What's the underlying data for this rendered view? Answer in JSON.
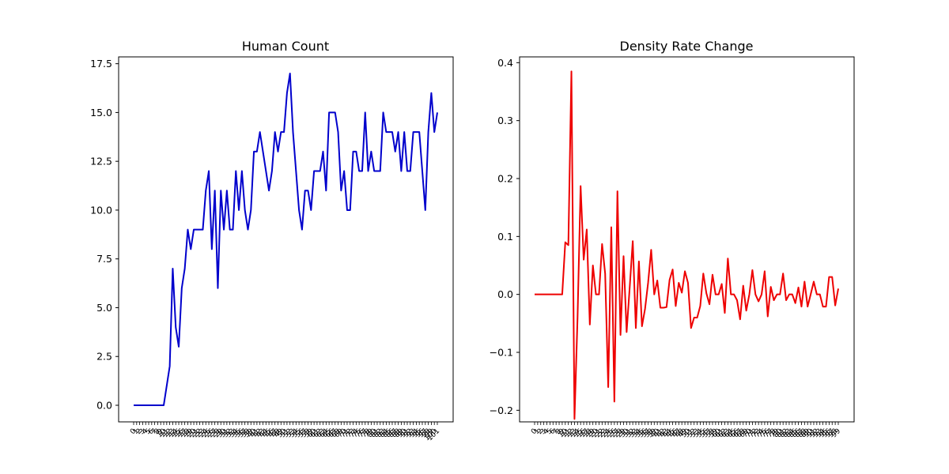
{
  "chart_data": [
    {
      "type": "line",
      "title": "Human Count",
      "xlabel": "",
      "ylabel": "",
      "color": "#0000cc",
      "ylim": [
        -0.85,
        17.85
      ],
      "yticks": [
        "0.0",
        "2.5",
        "5.0",
        "7.5",
        "10.0",
        "12.5",
        "15.0",
        "17.5"
      ],
      "ytick_values": [
        0,
        2.5,
        5,
        7.5,
        10,
        12.5,
        15,
        17.5
      ],
      "grid": false,
      "values": [
        0,
        0,
        0,
        0,
        0,
        0,
        0,
        0,
        0,
        0,
        0,
        1,
        2,
        7,
        4,
        3,
        6,
        7,
        9,
        8,
        9,
        9,
        9,
        9,
        11,
        12,
        8,
        11,
        6,
        11,
        9,
        11,
        9,
        9,
        12,
        10,
        12,
        10,
        9,
        10,
        13,
        13,
        14,
        13,
        12,
        11,
        12,
        14,
        13,
        14,
        14,
        16,
        17,
        14,
        12,
        10,
        9,
        11,
        11,
        10,
        12,
        12,
        12,
        13,
        11,
        15,
        15,
        15,
        14,
        11,
        12,
        10,
        10,
        13,
        13,
        12,
        12,
        15,
        12,
        13,
        12,
        12,
        12,
        15,
        14,
        14,
        14,
        13,
        14,
        12,
        14,
        12,
        12,
        14,
        14,
        14,
        12,
        10,
        14,
        16,
        14,
        15
      ]
    },
    {
      "type": "line",
      "title": "Density Rate Change",
      "xlabel": "",
      "ylabel": "",
      "color": "#ee0000",
      "ylim": [
        -0.22,
        0.41
      ],
      "yticks": [
        "−0.2",
        "−0.1",
        "0.0",
        "0.1",
        "0.2",
        "0.3",
        "0.4"
      ],
      "ytick_values": [
        -0.2,
        -0.1,
        0,
        0.1,
        0.2,
        0.3,
        0.4
      ],
      "grid": false,
      "values": [
        0,
        0,
        0,
        0,
        0,
        0,
        0,
        0,
        0,
        0,
        0.09,
        0.085,
        0.385,
        -0.215,
        -0.04,
        0.187,
        0.06,
        0.112,
        -0.052,
        0.05,
        0,
        0,
        0.087,
        0.036,
        -0.16,
        0.116,
        -0.185,
        0.178,
        -0.07,
        0.066,
        -0.065,
        0.012,
        0.092,
        -0.058,
        0.057,
        -0.055,
        -0.025,
        0.02,
        0.077,
        0,
        0.024,
        -0.023,
        -0.023,
        -0.022,
        0.025,
        0.043,
        -0.02,
        0.02,
        0.003,
        0.04,
        0.02,
        -0.058,
        -0.04,
        -0.04,
        -0.02,
        0.036,
        0.002,
        -0.017,
        0.034,
        0,
        0,
        0.018,
        -0.032,
        0.062,
        0,
        0,
        -0.01,
        -0.043,
        0.015,
        -0.028,
        0,
        0.042,
        0,
        -0.012,
        0,
        0.04,
        -0.038,
        0.013,
        -0.01,
        0,
        0,
        0.036,
        -0.01,
        0,
        0,
        -0.015,
        0.012,
        -0.021,
        0.022,
        -0.021,
        0,
        0.022,
        0,
        0,
        -0.021,
        -0.021,
        0.03,
        0.03,
        -0.019,
        0.01
      ]
    }
  ]
}
